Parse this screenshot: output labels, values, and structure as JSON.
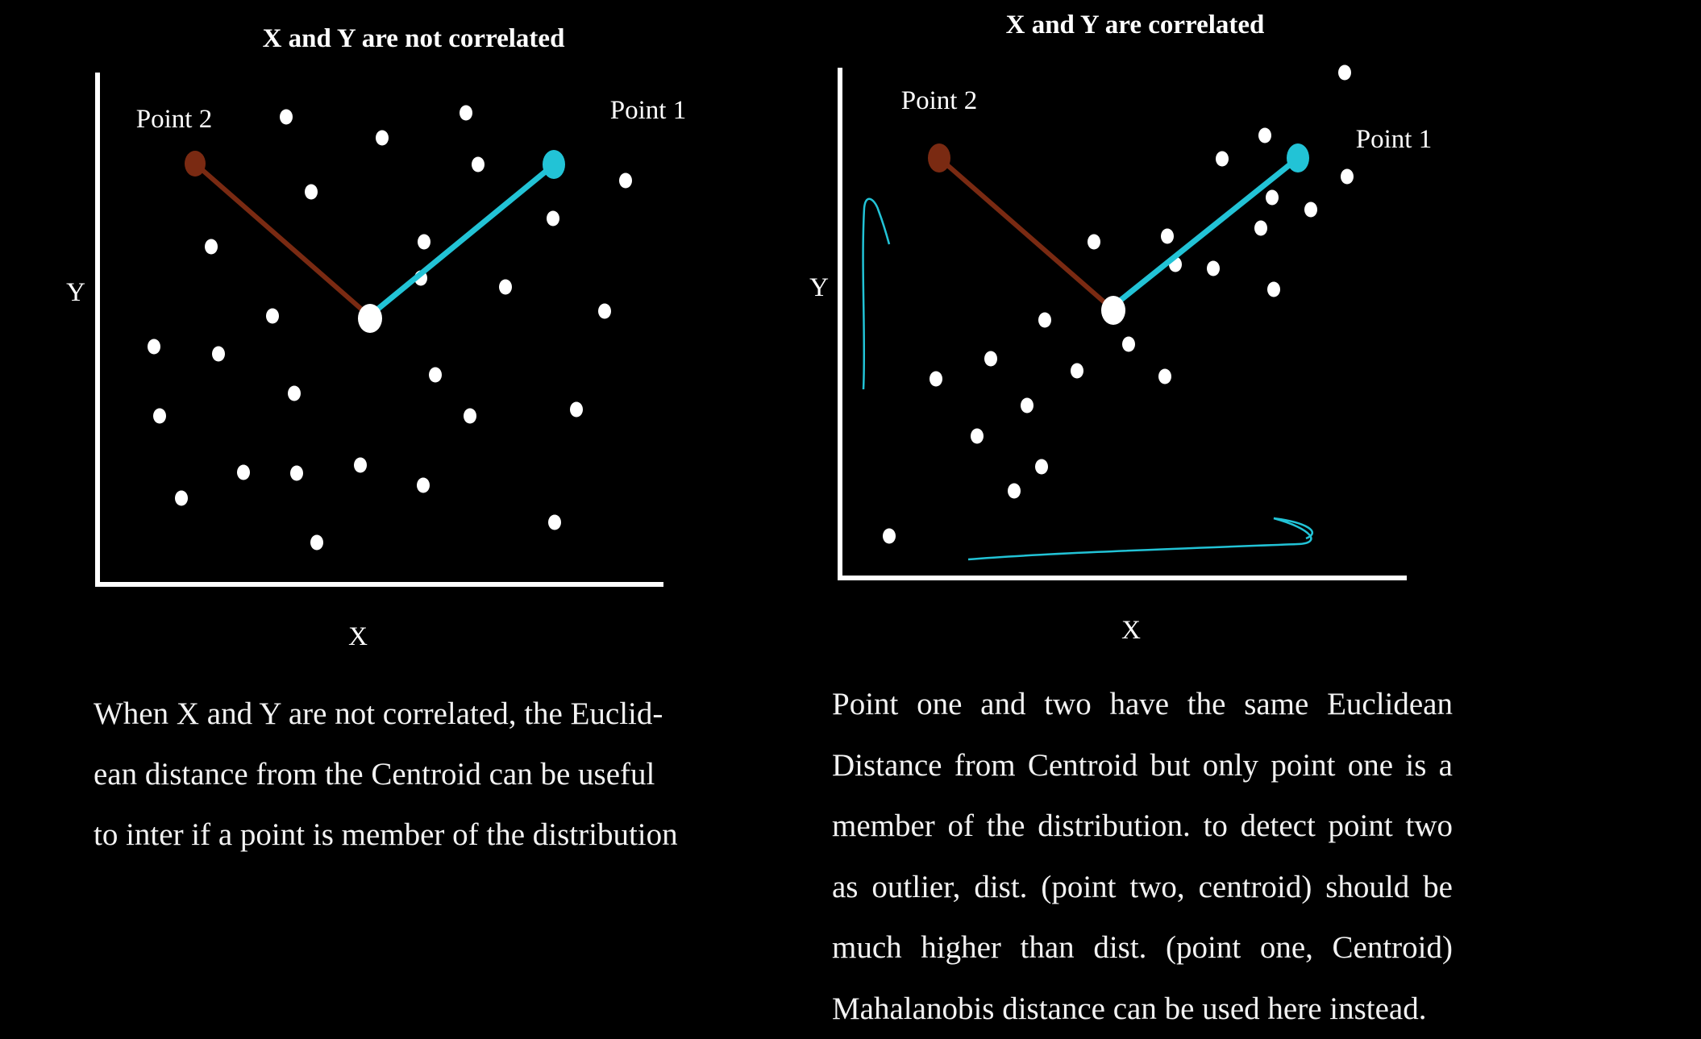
{
  "panels": [
    {
      "title": "X and Y are not correlated",
      "xlabel": "X",
      "ylabel": "Y",
      "point_labels": {
        "p1": "Point 1",
        "p2": "Point 2"
      },
      "caption_lines": [
        "When X and Y are not correlated, the Euclid-",
        "ean distance from the Centroid can be useful",
        "to inter if a point is member of the distribution"
      ]
    },
    {
      "title": "X and Y are correlated",
      "xlabel": "X",
      "ylabel": "Y",
      "point_labels": {
        "p1": "Point 1",
        "p2": "Point 2"
      },
      "caption_lines": [
        "Point one and two have the same Euclidean",
        "Distance from Centroid but only point one is a",
        "member of the distribution. to detect point two",
        "as outlier, dist. (point two, centroid) should be",
        "much higher than dist. (point one, Centroid)",
        "Mahalanobis distance can be used here instead."
      ]
    }
  ],
  "colors": {
    "background": "#000000",
    "point1": "#22c3d6",
    "point2": "#7a2a12",
    "dots": "#ffffff",
    "annotation": "#22c3d6"
  }
}
